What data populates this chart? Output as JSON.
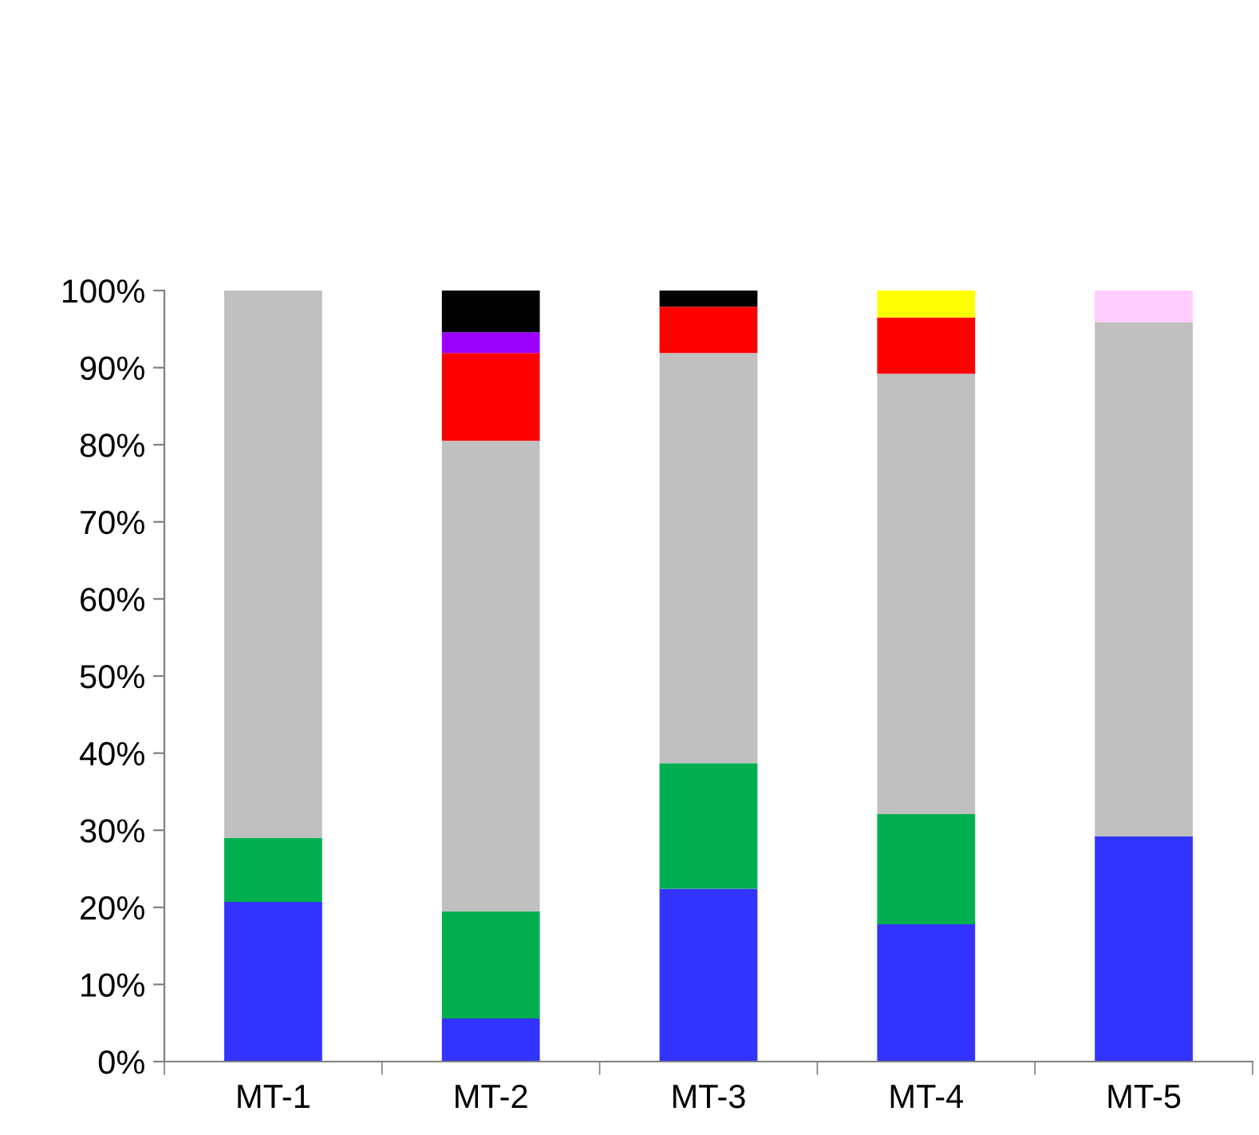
{
  "chart_data": {
    "type": "bar",
    "stacked": true,
    "categories": [
      "MT-1",
      "MT-2",
      "MT-3",
      "MT-4",
      "MT-5"
    ],
    "series": [
      {
        "color": "#3333ff",
        "values": [
          20.7,
          5.6,
          22.4,
          17.8,
          29.2
        ]
      },
      {
        "color": "#00b050",
        "values": [
          8.3,
          13.9,
          16.3,
          14.3,
          null
        ]
      },
      {
        "color": "#c0c0c0",
        "values": [
          71.0,
          61.0,
          53.2,
          57.1,
          66.7
        ]
      },
      {
        "color": "#ff0000",
        "values": [
          null,
          11.4,
          6.0,
          7.3,
          null
        ]
      },
      {
        "color": "#9900ff",
        "values": [
          null,
          2.7,
          null,
          null,
          null
        ]
      },
      {
        "color": "#000000",
        "values": [
          null,
          5.4,
          2.1,
          null,
          null
        ]
      },
      {
        "color": "#ffff00",
        "values": [
          null,
          null,
          null,
          3.5,
          null
        ]
      },
      {
        "color": "#ffccff",
        "values": [
          null,
          null,
          null,
          null,
          4.1
        ]
      }
    ],
    "ylim": [
      0,
      100
    ],
    "yticks": [
      {
        "value": 0,
        "label": "0%"
      },
      {
        "value": 10,
        "label": "10%"
      },
      {
        "value": 20,
        "label": "20%"
      },
      {
        "value": 30,
        "label": "30%"
      },
      {
        "value": 40,
        "label": "40%"
      },
      {
        "value": 50,
        "label": "50%"
      },
      {
        "value": 60,
        "label": "60%"
      },
      {
        "value": 70,
        "label": "70%"
      },
      {
        "value": 80,
        "label": "80%"
      },
      {
        "value": 90,
        "label": "90%"
      },
      {
        "value": 100,
        "label": "100%"
      }
    ],
    "orientation": "vertical"
  }
}
